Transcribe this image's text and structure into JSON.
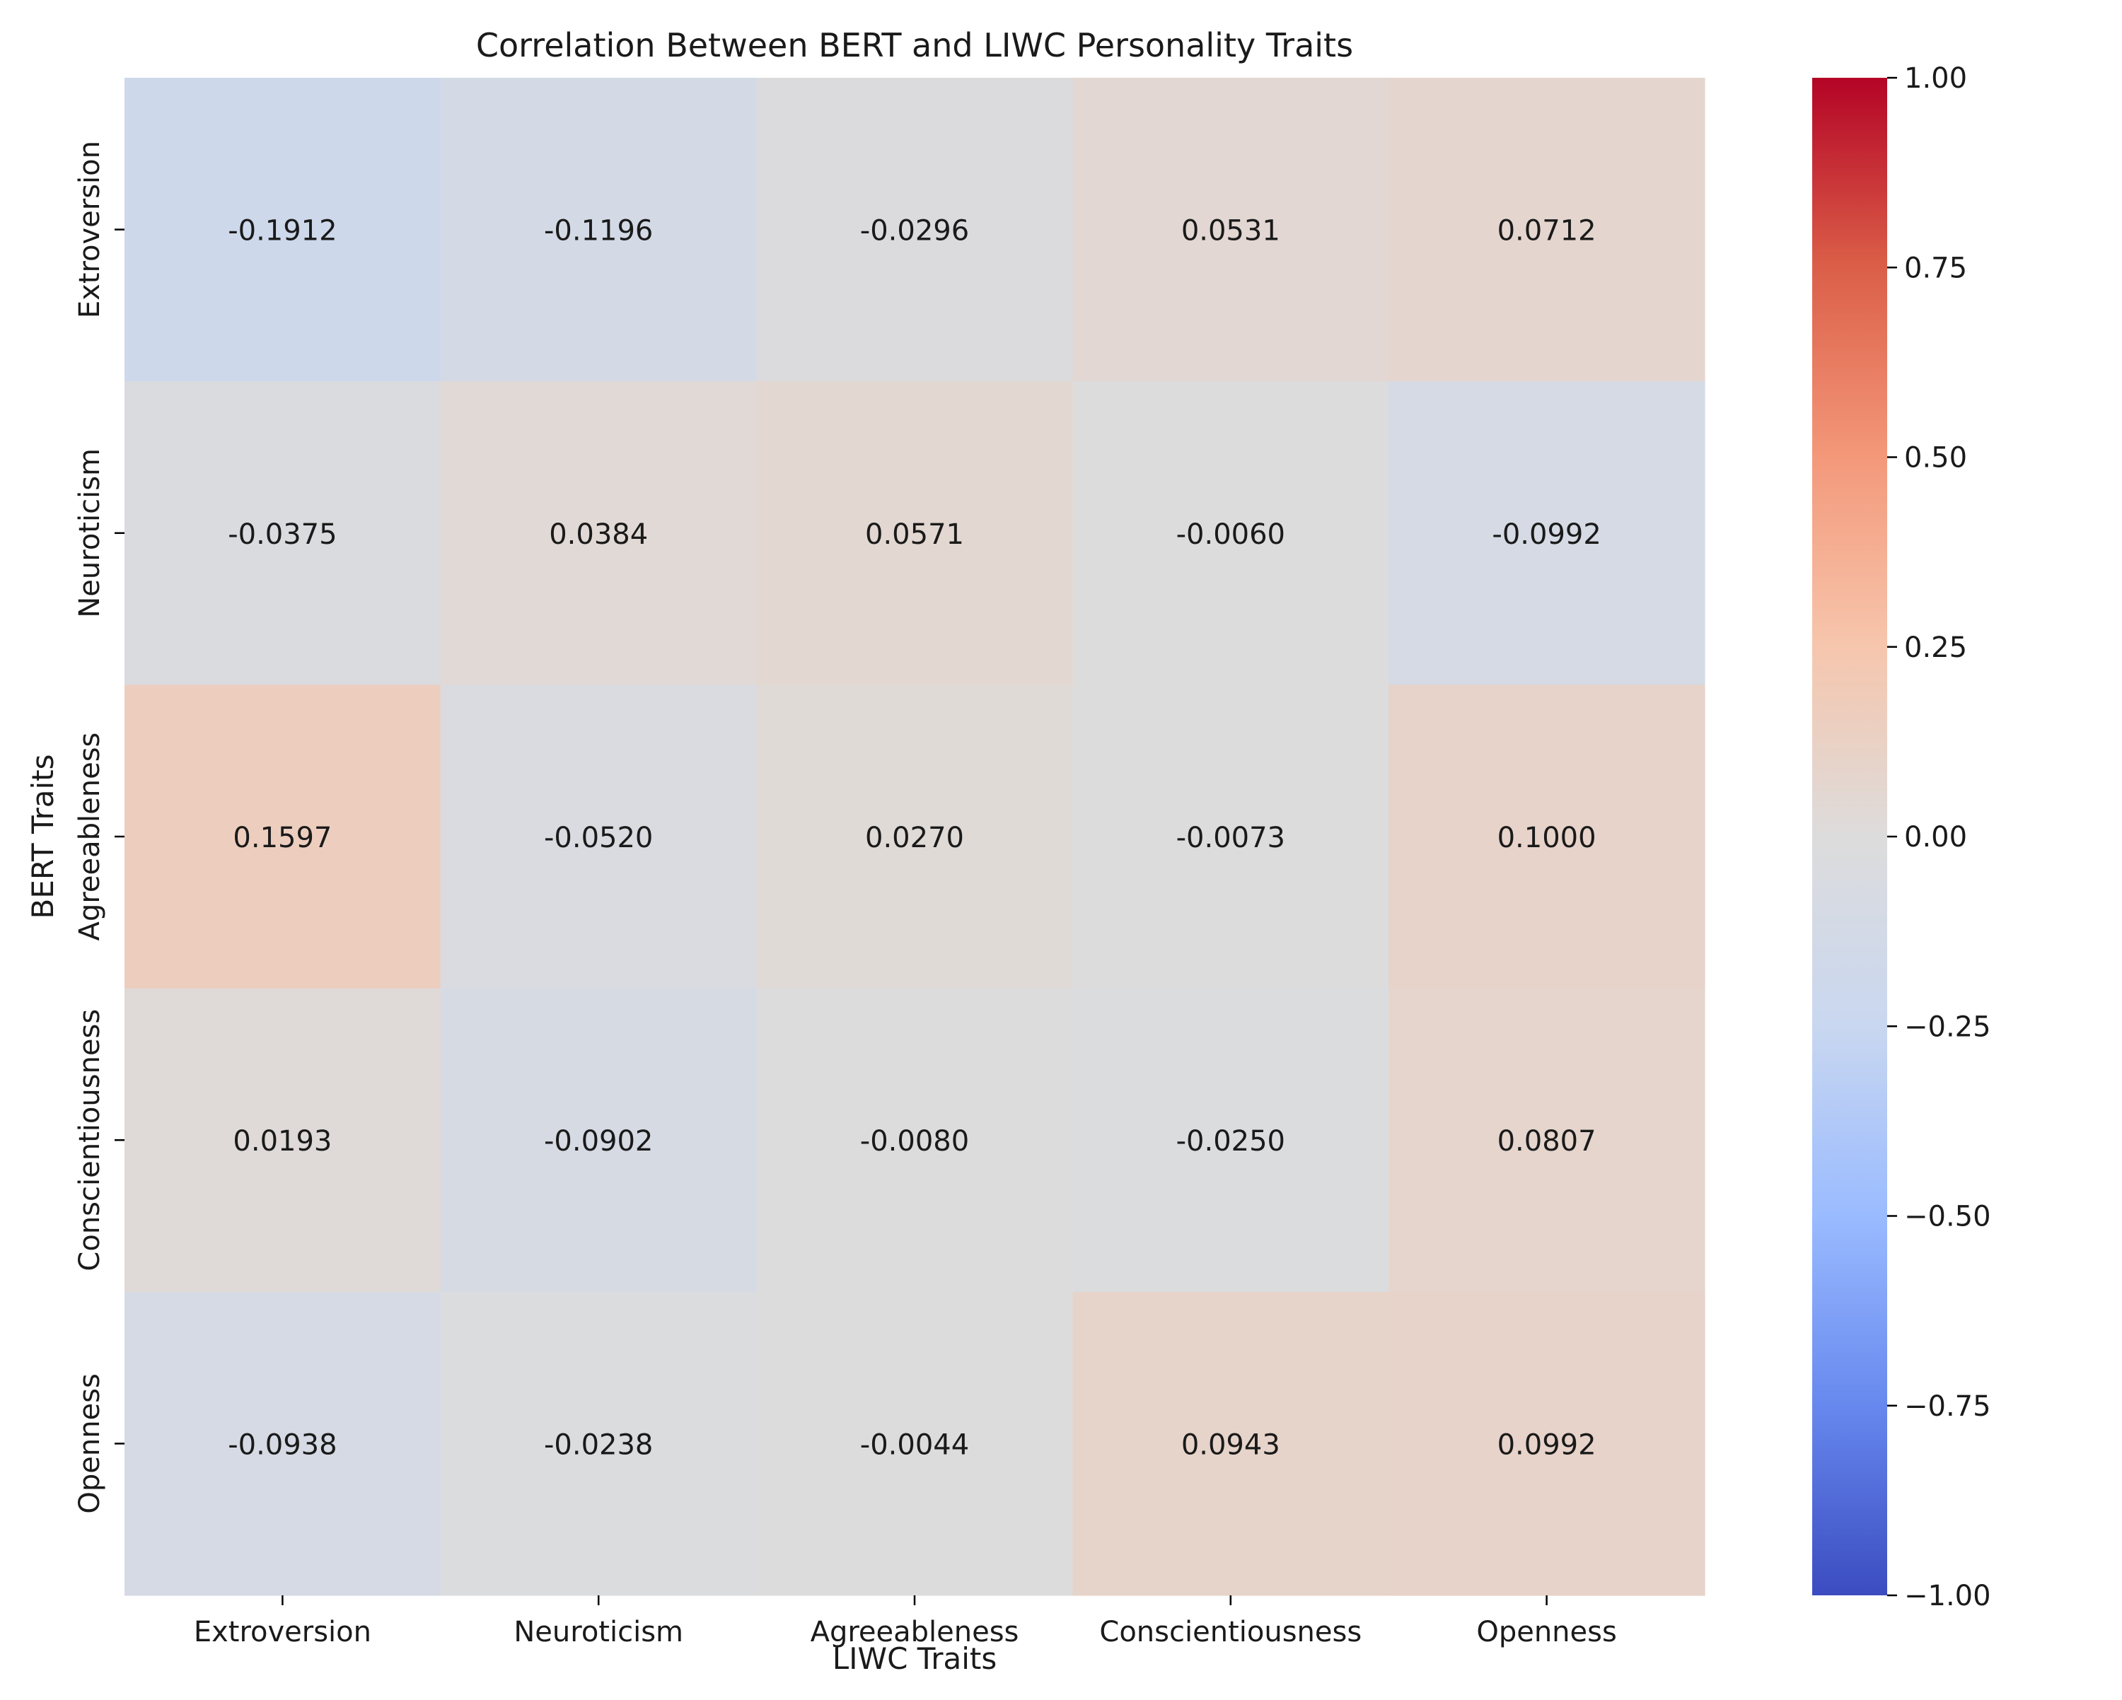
{
  "chart_data": {
    "type": "heatmap",
    "title": "Correlation Between BERT and LIWC Personality Traits",
    "xlabel": "LIWC Traits",
    "ylabel": "BERT Traits",
    "x_categories": [
      "Extroversion",
      "Neuroticism",
      "Agreeableness",
      "Conscientiousness",
      "Openness"
    ],
    "y_categories": [
      "Extroversion",
      "Neuroticism",
      "Agreeableness",
      "Conscientiousness",
      "Openness"
    ],
    "values": [
      [
        -0.1912,
        -0.1196,
        -0.0296,
        0.0531,
        0.0712
      ],
      [
        -0.0375,
        0.0384,
        0.0571,
        -0.006,
        -0.0992
      ],
      [
        0.1597,
        -0.052,
        0.027,
        -0.0073,
        0.1
      ],
      [
        0.0193,
        -0.0902,
        -0.008,
        -0.025,
        0.0807
      ],
      [
        -0.0938,
        -0.0238,
        -0.0044,
        0.0943,
        0.0992
      ]
    ],
    "value_labels": [
      [
        "-0.1912",
        "-0.1196",
        "-0.0296",
        "0.0531",
        "0.0712"
      ],
      [
        "-0.0375",
        "0.0384",
        "0.0571",
        "-0.0060",
        "-0.0992"
      ],
      [
        "0.1597",
        "-0.0520",
        "0.0270",
        "-0.0073",
        "0.1000"
      ],
      [
        "0.0193",
        "-0.0902",
        "-0.0080",
        "-0.0250",
        "0.0807"
      ],
      [
        "-0.0938",
        "-0.0238",
        "-0.0044",
        "0.0943",
        "0.0992"
      ]
    ],
    "colormap": "coolwarm",
    "vmin": -1.0,
    "vmax": 1.0,
    "colorbar_ticks": [
      1.0,
      0.75,
      0.5,
      0.25,
      0.0,
      -0.25,
      -0.5,
      -0.75,
      -1.0
    ],
    "colorbar_tick_labels": [
      "1.00",
      "0.75",
      "0.50",
      "0.25",
      "0.00",
      "−0.25",
      "−0.50",
      "−0.75",
      "−1.00"
    ],
    "colorbar_stops": [
      "#3b4cc0",
      "#6788ee",
      "#9abbff",
      "#c9d7f0",
      "#dddcdc",
      "#f6c6ad",
      "#f4987a",
      "#db5f48",
      "#b40426"
    ]
  }
}
